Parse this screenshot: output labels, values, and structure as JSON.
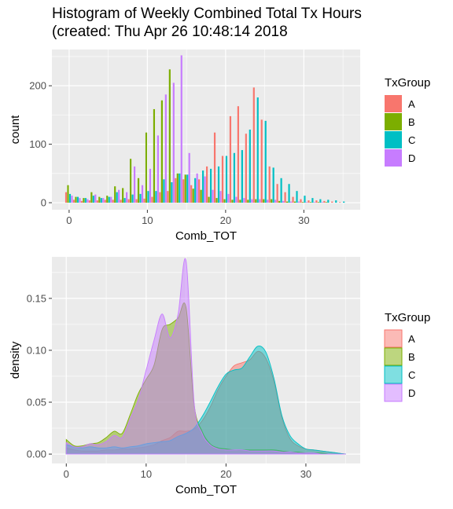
{
  "title": {
    "line1": "Histogram of Weekly Combined Total Tx Hours",
    "line2": "(created: Thu Apr 26 10:48:14 2018"
  },
  "colors": {
    "A": "#F8766D",
    "B": "#7CAE00",
    "C": "#00BFC4",
    "D": "#C77CFF",
    "panel": "#EBEBEB",
    "grid": "#FFFFFF"
  },
  "chart_data": [
    {
      "type": "bar",
      "subtype": "dodged histogram",
      "xlabel": "Comb_TOT",
      "ylabel": "count",
      "xlim": [
        -2.2,
        37.2
      ],
      "ylim": [
        -12,
        262
      ],
      "x_ticks": [
        0,
        10,
        20,
        30
      ],
      "y_ticks": [
        0,
        100,
        200
      ],
      "legend": {
        "title": "TxGroup",
        "position": "right",
        "entries": [
          "A",
          "B",
          "C",
          "D"
        ]
      },
      "bins": [
        0,
        1,
        2,
        3,
        4,
        5,
        6,
        7,
        8,
        9,
        10,
        11,
        12,
        13,
        14,
        15,
        16,
        17,
        18,
        19,
        20,
        21,
        22,
        23,
        24,
        25,
        26,
        27,
        28,
        29,
        30,
        31,
        32,
        33,
        34,
        35
      ],
      "series": [
        {
          "name": "A",
          "values": [
            18,
            5,
            3,
            4,
            4,
            5,
            5,
            5,
            6,
            6,
            7,
            10,
            18,
            20,
            42,
            40,
            30,
            40,
            62,
            120,
            80,
            148,
            165,
            118,
            197,
            142,
            62,
            32,
            18,
            10,
            6,
            4,
            4,
            3,
            2,
            1
          ]
        },
        {
          "name": "B",
          "values": [
            30,
            10,
            8,
            18,
            10,
            12,
            28,
            25,
            75,
            42,
            120,
            160,
            175,
            228,
            50,
            48,
            24,
            22,
            10,
            8,
            6,
            5,
            5,
            5,
            6,
            6,
            6,
            3,
            2,
            2,
            1,
            1,
            1,
            1,
            0,
            0
          ]
        },
        {
          "name": "C",
          "values": [
            15,
            10,
            8,
            12,
            8,
            10,
            18,
            8,
            14,
            15,
            20,
            20,
            40,
            35,
            50,
            48,
            42,
            55,
            58,
            62,
            80,
            85,
            90,
            125,
            180,
            140,
            60,
            42,
            32,
            20,
            12,
            8,
            6,
            5,
            4,
            2
          ]
        },
        {
          "name": "D",
          "values": [
            12,
            8,
            6,
            14,
            8,
            10,
            22,
            18,
            62,
            30,
            58,
            115,
            185,
            205,
            252,
            85,
            50,
            45,
            22,
            20,
            15,
            10,
            8,
            6,
            6,
            5,
            5,
            3,
            2,
            2,
            1,
            1,
            1,
            0,
            0,
            0
          ]
        }
      ]
    },
    {
      "type": "area",
      "subtype": "overlaid density",
      "xlabel": "Comb_TOT",
      "ylabel": "density",
      "xlim": [
        -1.8,
        36.8
      ],
      "ylim": [
        -0.009,
        0.19
      ],
      "x_ticks": [
        0,
        10,
        20,
        30
      ],
      "y_ticks": [
        0.0,
        0.05,
        0.1,
        0.15
      ],
      "y_tick_labels": [
        "0.00",
        "0.05",
        "0.10",
        "0.15"
      ],
      "legend": {
        "title": "TxGroup",
        "position": "right",
        "entries": [
          "A",
          "B",
          "C",
          "D"
        ]
      },
      "series": [
        {
          "name": "A",
          "x": [
            0,
            1,
            2,
            3,
            4,
            5,
            6,
            7,
            8,
            9,
            10,
            11,
            12,
            13,
            14,
            15,
            16,
            17,
            18,
            19,
            20,
            21,
            22,
            23,
            24,
            25,
            26,
            27,
            28,
            29,
            30,
            31,
            32,
            33,
            34,
            35
          ],
          "y": [
            0.006,
            0.004,
            0.003,
            0.003,
            0.003,
            0.004,
            0.004,
            0.005,
            0.005,
            0.006,
            0.007,
            0.009,
            0.013,
            0.016,
            0.022,
            0.022,
            0.024,
            0.032,
            0.045,
            0.062,
            0.075,
            0.085,
            0.088,
            0.091,
            0.099,
            0.092,
            0.07,
            0.035,
            0.015,
            0.008,
            0.005,
            0.004,
            0.003,
            0.002,
            0.001,
            0.0
          ]
        },
        {
          "name": "B",
          "x": [
            0,
            1,
            2,
            3,
            4,
            5,
            6,
            7,
            8,
            9,
            10,
            11,
            12,
            13,
            14,
            15,
            16,
            17,
            18,
            19,
            20,
            21,
            22,
            23,
            24,
            25,
            26,
            27,
            28,
            29,
            30,
            31,
            32,
            33,
            34,
            35
          ],
          "y": [
            0.014,
            0.008,
            0.008,
            0.01,
            0.011,
            0.016,
            0.022,
            0.02,
            0.038,
            0.058,
            0.072,
            0.086,
            0.12,
            0.125,
            0.131,
            0.141,
            0.048,
            0.022,
            0.01,
            0.006,
            0.005,
            0.004,
            0.004,
            0.004,
            0.004,
            0.004,
            0.004,
            0.003,
            0.002,
            0.002,
            0.001,
            0.001,
            0.001,
            0.0,
            0.0,
            0.0
          ]
        },
        {
          "name": "C",
          "x": [
            0,
            1,
            2,
            3,
            4,
            5,
            6,
            7,
            8,
            9,
            10,
            11,
            12,
            13,
            14,
            15,
            16,
            17,
            18,
            19,
            20,
            21,
            22,
            23,
            24,
            25,
            26,
            27,
            28,
            29,
            30,
            31,
            32,
            33,
            34,
            35
          ],
          "y": [
            0.009,
            0.007,
            0.006,
            0.007,
            0.006,
            0.006,
            0.007,
            0.006,
            0.007,
            0.008,
            0.01,
            0.011,
            0.012,
            0.013,
            0.017,
            0.02,
            0.025,
            0.036,
            0.05,
            0.065,
            0.077,
            0.081,
            0.083,
            0.094,
            0.104,
            0.098,
            0.073,
            0.037,
            0.018,
            0.01,
            0.005,
            0.004,
            0.003,
            0.002,
            0.001,
            0.0
          ]
        },
        {
          "name": "D",
          "x": [
            0,
            1,
            2,
            3,
            4,
            5,
            6,
            7,
            8,
            9,
            10,
            11,
            12,
            13,
            14,
            15,
            16,
            17,
            18,
            19,
            20,
            21,
            22,
            23,
            24,
            25,
            26,
            27,
            28,
            29,
            30,
            31,
            32,
            33,
            34,
            35
          ],
          "y": [
            0.011,
            0.007,
            0.007,
            0.01,
            0.009,
            0.012,
            0.018,
            0.016,
            0.034,
            0.052,
            0.081,
            0.11,
            0.135,
            0.112,
            0.135,
            0.186,
            0.05,
            0.02,
            0.009,
            0.005,
            0.004,
            0.004,
            0.004,
            0.003,
            0.003,
            0.003,
            0.003,
            0.002,
            0.002,
            0.001,
            0.001,
            0.001,
            0.0,
            0.0,
            0.0,
            0.0
          ]
        }
      ]
    }
  ]
}
